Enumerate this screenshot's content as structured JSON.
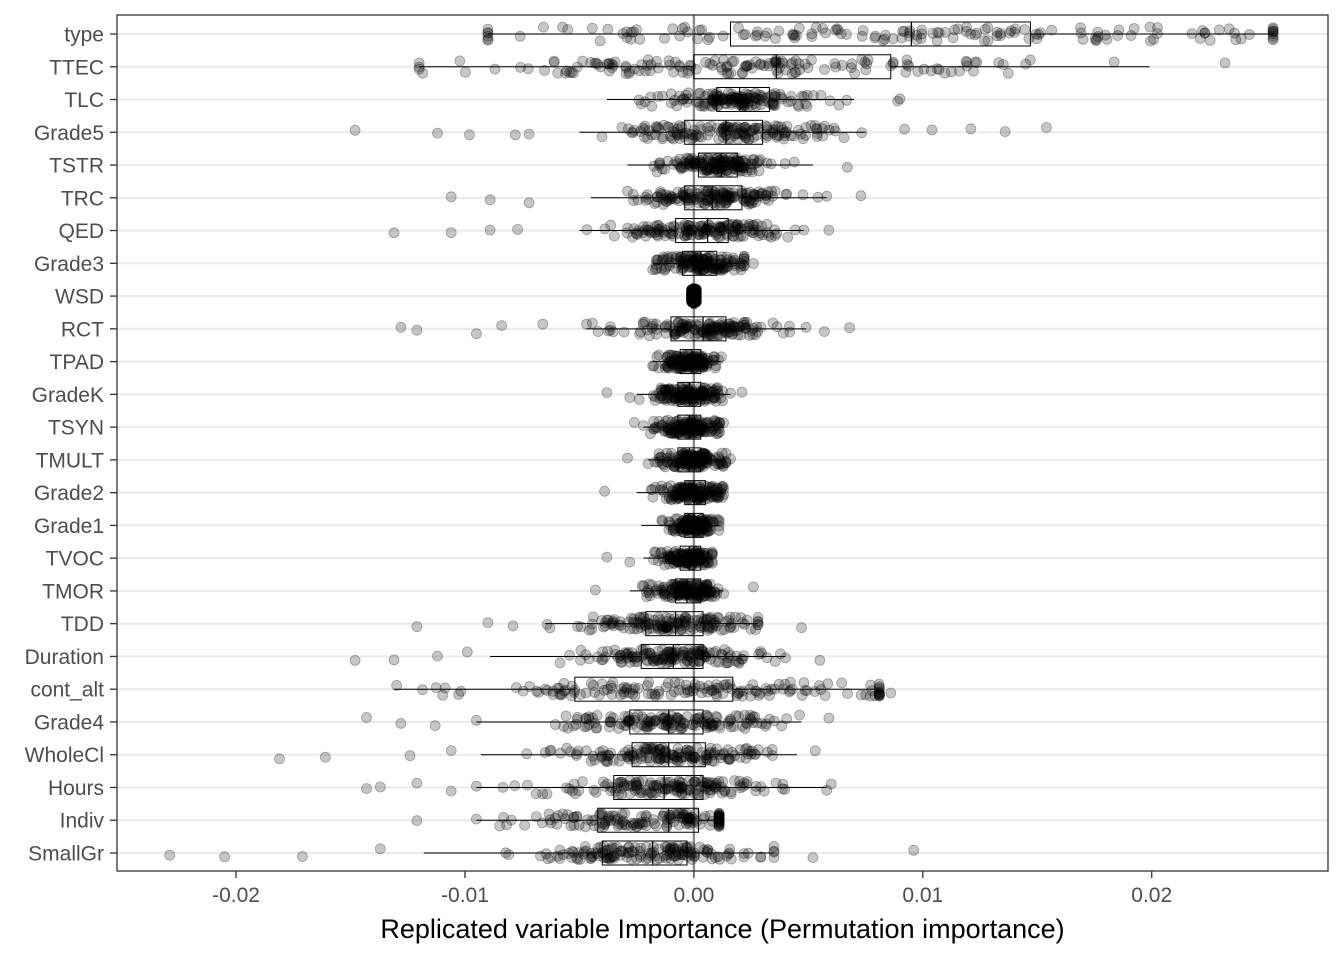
{
  "chart_data": {
    "type": "box",
    "title": "",
    "xlabel": "Replicated variable Importance (Permutation importance)",
    "ylabel": "",
    "xlim": [
      -0.0252,
      0.0277
    ],
    "x_ticks": [
      -0.02,
      -0.01,
      0.0,
      0.01,
      0.02
    ],
    "x_tick_labels": [
      "-0.02",
      "-0.01",
      "0.00",
      "0.01",
      "0.02"
    ],
    "reference_line_x": 0,
    "grid": "horizontal-major",
    "legend": "none",
    "point_color": "#000000",
    "point_alpha": 0.22,
    "categories": [
      "type",
      "TTEC",
      "TLC",
      "Grade5",
      "TSTR",
      "TRC",
      "QED",
      "Grade3",
      "WSD",
      "RCT",
      "TPAD",
      "GradeK",
      "TSYN",
      "TMULT",
      "Grade2",
      "Grade1",
      "TVOC",
      "TMOR",
      "TDD",
      "Duration",
      "cont_alt",
      "Grade4",
      "WholeCl",
      "Hours",
      "Indiv",
      "SmallGr"
    ],
    "series": [
      {
        "category": "type",
        "whisker_low": -0.009,
        "q1": 0.0016,
        "median": 0.0095,
        "q3": 0.0147,
        "whisker_high": 0.0253,
        "outliers": []
      },
      {
        "category": "TTEC",
        "whisker_low": -0.012,
        "q1": 0.0,
        "median": 0.0036,
        "q3": 0.0086,
        "whisker_high": 0.0199,
        "outliers": [
          0.0232
        ]
      },
      {
        "category": "TLC",
        "whisker_low": -0.0038,
        "q1": 0.001,
        "median": 0.002,
        "q3": 0.0033,
        "whisker_high": 0.007,
        "outliers": [
          0.0089,
          0.009
        ]
      },
      {
        "category": "Grade5",
        "whisker_low": -0.005,
        "q1": -0.0004,
        "median": 0.0014,
        "q3": 0.003,
        "whisker_high": 0.0075,
        "outliers": [
          -0.0148,
          -0.0112,
          -0.0098,
          -0.0078,
          -0.0072,
          0.0092,
          0.0104,
          0.0121,
          0.0136,
          0.0154
        ]
      },
      {
        "category": "TSTR",
        "whisker_low": -0.0029,
        "q1": 0.0002,
        "median": 0.0012,
        "q3": 0.0019,
        "whisker_high": 0.0052,
        "outliers": [
          0.0067
        ]
      },
      {
        "category": "TRC",
        "whisker_low": -0.0045,
        "q1": -0.0004,
        "median": 0.0008,
        "q3": 0.0021,
        "whisker_high": 0.0058,
        "outliers": [
          -0.0106,
          -0.0089,
          -0.0072,
          0.0073
        ]
      },
      {
        "category": "QED",
        "whisker_low": -0.005,
        "q1": -0.0008,
        "median": 0.0006,
        "q3": 0.0015,
        "whisker_high": 0.0048,
        "outliers": [
          -0.0131,
          -0.0106,
          -0.0089,
          -0.0077,
          0.0059
        ]
      },
      {
        "category": "Grade3",
        "whisker_low": -0.0018,
        "q1": -0.0005,
        "median": 0.0003,
        "q3": 0.001,
        "whisker_high": 0.0022,
        "outliers": [
          0.0026
        ]
      },
      {
        "category": "WSD",
        "whisker_low": -0.0001,
        "q1": -0.0001,
        "median": 0.0,
        "q3": 0.0001,
        "whisker_high": 0.0001,
        "outliers": []
      },
      {
        "category": "RCT",
        "whisker_low": -0.0047,
        "q1": -0.001,
        "median": 0.0004,
        "q3": 0.0014,
        "whisker_high": 0.0049,
        "outliers": [
          -0.0128,
          -0.0121,
          -0.0095,
          -0.0084,
          -0.0066,
          0.0057,
          0.0068
        ]
      },
      {
        "category": "TPAD",
        "whisker_low": -0.0018,
        "q1": -0.0006,
        "median": -0.0001,
        "q3": 0.0003,
        "whisker_high": 0.0012,
        "outliers": []
      },
      {
        "category": "GradeK",
        "whisker_low": -0.0025,
        "q1": -0.0007,
        "median": -0.0002,
        "q3": 0.0003,
        "whisker_high": 0.0016,
        "outliers": [
          -0.0038,
          -0.0028,
          0.0021
        ]
      },
      {
        "category": "TSYN",
        "whisker_low": -0.0022,
        "q1": -0.0007,
        "median": -0.0002,
        "q3": 0.0003,
        "whisker_high": 0.0013,
        "outliers": [
          -0.0026
        ]
      },
      {
        "category": "TMULT",
        "whisker_low": -0.002,
        "q1": -0.0007,
        "median": -0.0002,
        "q3": 0.0003,
        "whisker_high": 0.0014,
        "outliers": [
          -0.0029,
          0.0016
        ]
      },
      {
        "category": "Grade2",
        "whisker_low": -0.0025,
        "q1": -0.0004,
        "median": 0.0,
        "q3": 0.0005,
        "whisker_high": 0.0013,
        "outliers": [
          -0.0039
        ]
      },
      {
        "category": "Grade1",
        "whisker_low": -0.0023,
        "q1": -0.0004,
        "median": 0.0,
        "q3": 0.0004,
        "whisker_high": 0.0011,
        "outliers": []
      },
      {
        "category": "TVOC",
        "whisker_low": -0.0022,
        "q1": -0.0006,
        "median": -0.0002,
        "q3": 0.0003,
        "whisker_high": 0.0008,
        "outliers": [
          -0.0038,
          -0.0028
        ]
      },
      {
        "category": "TMOR",
        "whisker_low": -0.0028,
        "q1": -0.0008,
        "median": -0.0003,
        "q3": 0.0003,
        "whisker_high": 0.0013,
        "outliers": [
          -0.0043,
          0.0026
        ]
      },
      {
        "category": "TDD",
        "whisker_low": -0.0065,
        "q1": -0.0021,
        "median": -0.0008,
        "q3": 0.0004,
        "whisker_high": 0.0028,
        "outliers": [
          -0.0121,
          -0.009,
          -0.0079,
          0.0047
        ]
      },
      {
        "category": "Duration",
        "whisker_low": -0.0089,
        "q1": -0.0023,
        "median": -0.0009,
        "q3": 0.0004,
        "whisker_high": 0.004,
        "outliers": [
          -0.0148,
          -0.0131,
          -0.0112,
          -0.0099,
          0.0055
        ]
      },
      {
        "category": "cont_alt",
        "whisker_low": -0.0131,
        "q1": -0.0052,
        "median": 0.0,
        "q3": 0.0017,
        "whisker_high": 0.0081,
        "outliers": [
          0.0086
        ]
      },
      {
        "category": "Grade4",
        "whisker_low": -0.0095,
        "q1": -0.0028,
        "median": -0.0011,
        "q3": 0.0004,
        "whisker_high": 0.0047,
        "outliers": [
          -0.0143,
          -0.0128,
          -0.0113,
          0.0059
        ]
      },
      {
        "category": "WholeCl",
        "whisker_low": -0.0093,
        "q1": -0.0027,
        "median": -0.0011,
        "q3": 0.0005,
        "whisker_high": 0.0045,
        "outliers": [
          -0.0181,
          -0.0161,
          -0.0124,
          -0.0106,
          0.0053
        ]
      },
      {
        "category": "Hours",
        "whisker_low": -0.0095,
        "q1": -0.0035,
        "median": -0.0013,
        "q3": 0.0004,
        "whisker_high": 0.0058,
        "outliers": [
          -0.0143,
          -0.0137,
          -0.0121,
          -0.0106,
          0.006
        ]
      },
      {
        "category": "Indiv",
        "whisker_low": -0.0095,
        "q1": -0.0042,
        "median": -0.0011,
        "q3": 0.0002,
        "whisker_high": 0.0011,
        "outliers": [
          -0.0121
        ]
      },
      {
        "category": "SmallGr",
        "whisker_low": -0.0118,
        "q1": -0.004,
        "median": -0.0018,
        "q3": -0.0003,
        "whisker_high": 0.0035,
        "outliers": [
          -0.0229,
          -0.0205,
          -0.0171,
          -0.0137,
          0.0052,
          0.0096
        ]
      }
    ]
  }
}
